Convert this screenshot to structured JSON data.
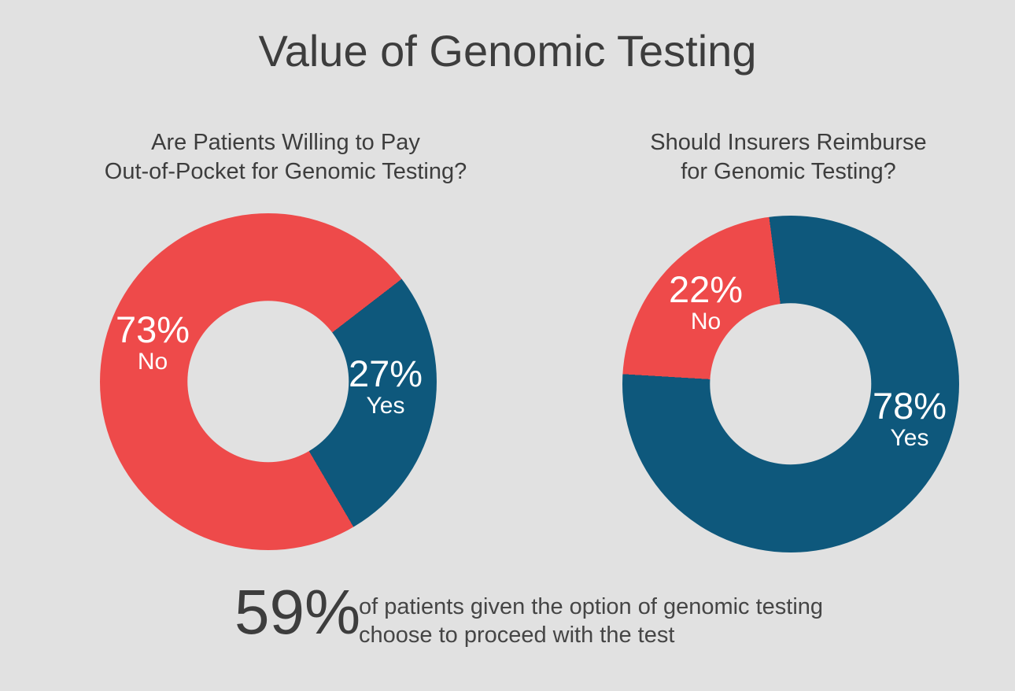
{
  "page": {
    "title": "Value of Genomic Testing"
  },
  "colors": {
    "bg": "#e1e1e1",
    "ink": "#3d3d3d",
    "text": "#454545",
    "red": "#ee4a4a",
    "blue": "#0e587c",
    "label": "#ffffff"
  },
  "chart_data": [
    {
      "type": "pie",
      "subtype": "donut",
      "title": "Are Patients Willing to Pay Out-of-Pocket for Genomic Testing?",
      "title_line1": "Are Patients Willing to Pay",
      "title_line2": "Out-of-Pocket for Genomic Testing?",
      "rotation_deg": 52.4,
      "hole_ratio": 0.48,
      "slices_clockwise": [
        {
          "label": "Yes",
          "value": 27,
          "pct_label": "27%",
          "color": "#0e587c"
        },
        {
          "label": "No",
          "value": 73,
          "pct_label": "73%",
          "color": "#ee4a4a"
        }
      ]
    },
    {
      "type": "pie",
      "subtype": "donut",
      "title": "Should Insurers Reimburse for Genomic Testing?",
      "title_line1": "Should Insurers Reimburse",
      "title_line2": "for Genomic Testing?",
      "rotation_deg": 273.4,
      "hole_ratio": 0.48,
      "slices_clockwise": [
        {
          "label": "No",
          "value": 22,
          "pct_label": "22%",
          "color": "#ee4a4a"
        },
        {
          "label": "Yes",
          "value": 78,
          "pct_label": "78%",
          "color": "#0e587c"
        }
      ]
    }
  ],
  "stat": {
    "number": "59%",
    "line1": "of patients given the option of genomic testing",
    "line2": "choose to proceed with the test"
  }
}
